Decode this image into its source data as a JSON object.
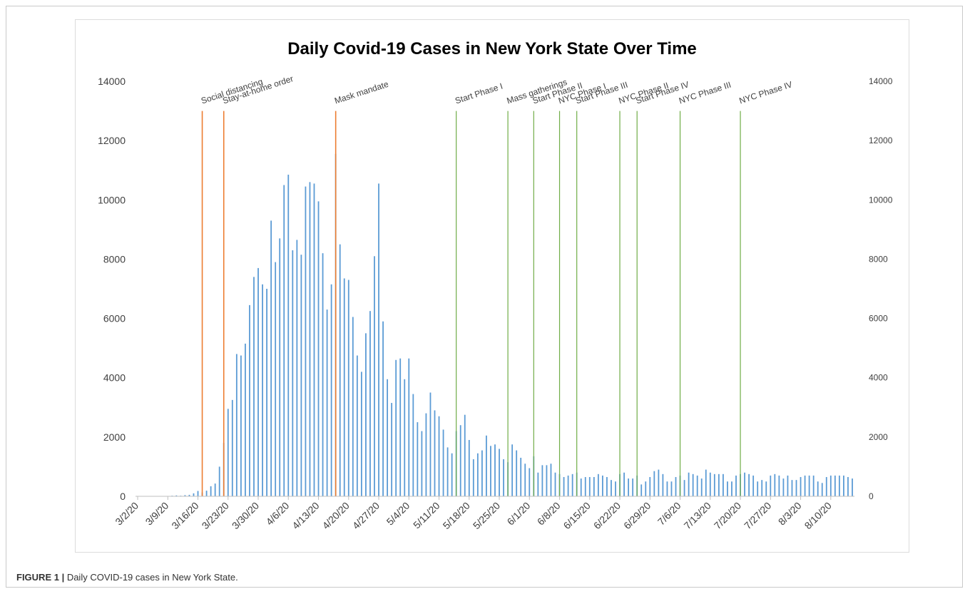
{
  "figure": {
    "caption_label": "FIGURE 1 |",
    "caption_text": " Daily COVID-19 cases in New York State."
  },
  "colors": {
    "bar": "#5b9bd5",
    "early_event_line": "#ed7d31",
    "late_event_line": "#70ad47",
    "axis_text": "#404040"
  },
  "chart_data": {
    "type": "bar",
    "title": "Daily Covid-19 Cases in New York State Over Time",
    "xlabel": "",
    "ylabel": "",
    "ylim": [
      0,
      14000
    ],
    "yticks": [
      0,
      2000,
      4000,
      6000,
      8000,
      10000,
      12000,
      14000
    ],
    "secondary_yticks": [
      0,
      2000,
      4000,
      6000,
      8000,
      10000,
      12000,
      14000
    ],
    "start_date": "2020-03-02",
    "xtick_labels": [
      "3/2/20",
      "3/9/20",
      "3/16/20",
      "3/23/20",
      "3/30/20",
      "4/6/20",
      "4/13/20",
      "4/20/20",
      "4/27/20",
      "5/4/20",
      "5/11/20",
      "5/18/20",
      "5/25/20",
      "6/1/20",
      "6/8/20",
      "6/15/20",
      "6/22/20",
      "6/29/20",
      "7/6/20",
      "7/13/20",
      "7/20/20",
      "7/27/20",
      "8/3/20",
      "8/10/20"
    ],
    "values": [
      0,
      0,
      0,
      0,
      0,
      0,
      0,
      0,
      20,
      30,
      20,
      40,
      50,
      100,
      180,
      130,
      190,
      340,
      430,
      1000,
      1800,
      2950,
      3250,
      4800,
      4750,
      5150,
      6450,
      7400,
      7700,
      7150,
      7000,
      9300,
      7900,
      8700,
      10500,
      10850,
      8300,
      8650,
      8150,
      10450,
      10600,
      10550,
      9950,
      8200,
      6300,
      7150,
      11550,
      8500,
      7350,
      7300,
      6050,
      4750,
      4200,
      5500,
      6250,
      8100,
      10550,
      5900,
      3950,
      3150,
      4600,
      4650,
      3950,
      4650,
      3450,
      2500,
      2200,
      2800,
      3500,
      2900,
      2700,
      2250,
      1650,
      1450,
      2200,
      2400,
      2750,
      1900,
      1250,
      1450,
      1550,
      2050,
      1700,
      1750,
      1600,
      1250,
      1150,
      1750,
      1550,
      1300,
      1100,
      950,
      1350,
      800,
      1050,
      1050,
      1100,
      800,
      750,
      650,
      700,
      750,
      800,
      600,
      650,
      650,
      650,
      750,
      700,
      650,
      550,
      500,
      750,
      800,
      600,
      600,
      700,
      400,
      500,
      650,
      850,
      900,
      750,
      500,
      500,
      650,
      700,
      550,
      800,
      750,
      700,
      600,
      900,
      800,
      750,
      750,
      750,
      500,
      500,
      700,
      750,
      800,
      750,
      700,
      500,
      550,
      500,
      700,
      750,
      700,
      600,
      700,
      550,
      550,
      650,
      700,
      700,
      700,
      500,
      450,
      650,
      700,
      700,
      700,
      700,
      650,
      600
    ],
    "event_lines": [
      {
        "label": "Social distancing",
        "day": 15,
        "group": "early"
      },
      {
        "label": "Stay-at-home order",
        "day": 20,
        "group": "early"
      },
      {
        "label": "Mask mandate",
        "day": 46,
        "group": "early"
      },
      {
        "label": "Start Phase I",
        "day": 74,
        "group": "late"
      },
      {
        "label": "Mass gatherings",
        "day": 86,
        "group": "late"
      },
      {
        "label": "Start Phase II",
        "day": 92,
        "group": "late"
      },
      {
        "label": "NYC Phase I",
        "day": 98,
        "group": "late"
      },
      {
        "label": "Start Phase III",
        "day": 102,
        "group": "late"
      },
      {
        "label": "NYC Phase II",
        "day": 112,
        "group": "late"
      },
      {
        "label": "Start Phase IV",
        "day": 116,
        "group": "late"
      },
      {
        "label": "NYC Phase III",
        "day": 126,
        "group": "late"
      },
      {
        "label": "NYC Phase IV",
        "day": 140,
        "group": "late"
      }
    ]
  }
}
